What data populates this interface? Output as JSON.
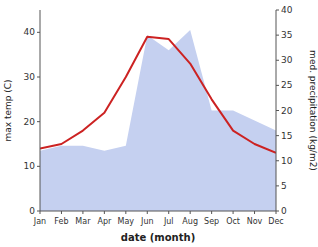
{
  "chart_data": {
    "type": "line",
    "categories": [
      "Jan",
      "Feb",
      "Mar",
      "Apr",
      "May",
      "Jun",
      "Jul",
      "Aug",
      "Sep",
      "Oct",
      "Nov",
      "Dec"
    ],
    "series": [
      {
        "type": "area",
        "color": "#c5d0f0",
        "axis": "y2",
        "values": [
          12,
          13,
          13,
          12,
          13,
          35,
          32,
          36,
          20,
          20,
          18,
          16
        ]
      },
      {
        "type": "line",
        "color": "#cc2222",
        "values": [
          14,
          15,
          18,
          22,
          30,
          39,
          38.5,
          33,
          25,
          18,
          15,
          13
        ]
      }
    ],
    "x_label": "date (month)",
    "y_label": "max temp (C)",
    "y2_label": "med. precipitation (kg/m2)",
    "ylim": [
      0,
      45
    ],
    "yticks": [
      0,
      10,
      20,
      30,
      40
    ],
    "y2lim": [
      0,
      40
    ],
    "y2ticks": [
      0,
      5,
      10,
      15,
      20,
      25,
      30,
      35,
      40
    ],
    "grid": false
  }
}
